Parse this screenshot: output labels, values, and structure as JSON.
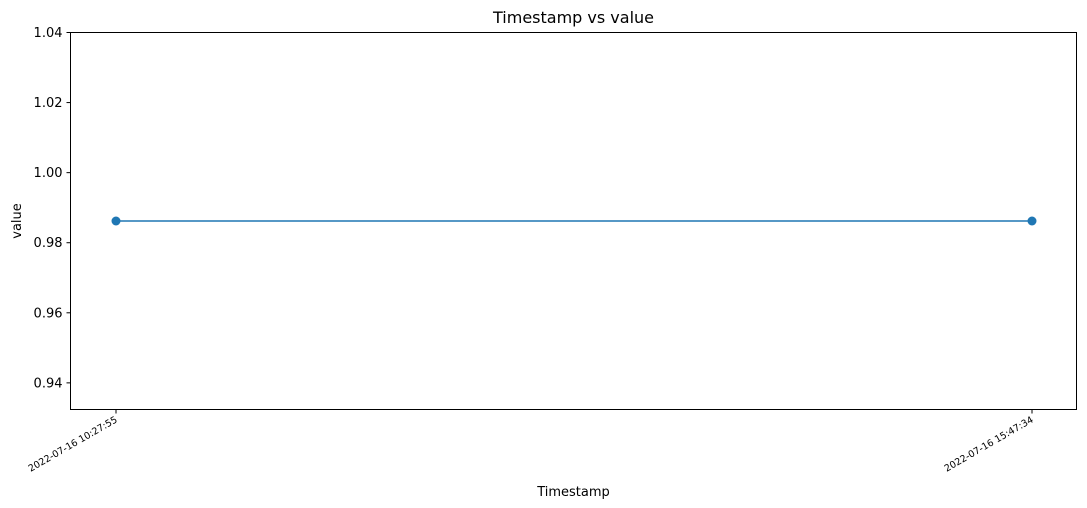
{
  "chart_data": {
    "type": "line",
    "title": "Timestamp vs value",
    "xlabel": "Timestamp",
    "ylabel": "value",
    "x": [
      "2022-07-16 10:27:55",
      "2022-07-16 15:47:34"
    ],
    "series": [
      {
        "values": [
          0.9862,
          0.9862
        ],
        "color": "#1f77b4",
        "marker": "circle"
      }
    ],
    "ylim": [
      0.9324,
      1.04
    ],
    "yticks": [
      {
        "value": 0.94,
        "label": "0.94"
      },
      {
        "value": 0.96,
        "label": "0.96"
      },
      {
        "value": 0.98,
        "label": "0.98"
      },
      {
        "value": 1.0,
        "label": "1.00"
      },
      {
        "value": 1.02,
        "label": "1.02"
      },
      {
        "value": 1.04,
        "label": "1.04"
      }
    ],
    "grid": false,
    "legend": "none"
  }
}
